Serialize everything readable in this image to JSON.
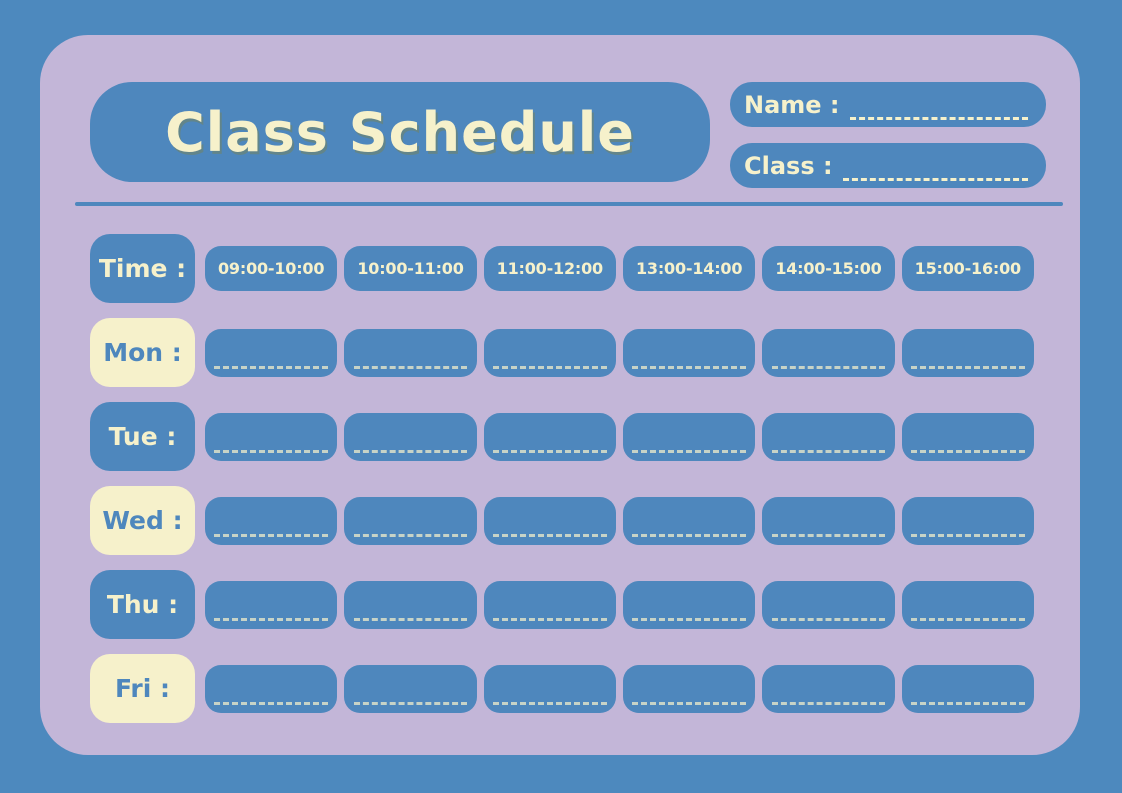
{
  "title": "Class Schedule",
  "fields": {
    "name_label": "Name :",
    "class_label": "Class :"
  },
  "schedule": {
    "time_label": "Time :",
    "time_slots": [
      "09:00-10:00",
      "10:00-11:00",
      "11:00-12:00",
      "13:00-14:00",
      "14:00-15:00",
      "15:00-16:00"
    ],
    "days": [
      {
        "label": "Mon :",
        "style": "cream"
      },
      {
        "label": "Tue :",
        "style": "blue"
      },
      {
        "label": "Wed :",
        "style": "cream"
      },
      {
        "label": "Thu :",
        "style": "blue"
      },
      {
        "label": "Fri :",
        "style": "cream"
      }
    ]
  },
  "colors": {
    "background_blue": "#4D89BE",
    "card_lavender": "#C3B6D8",
    "box_blue": "#4E87BD",
    "cream": "#F6F1CB",
    "title_shadow_olive": "#7D824B"
  }
}
